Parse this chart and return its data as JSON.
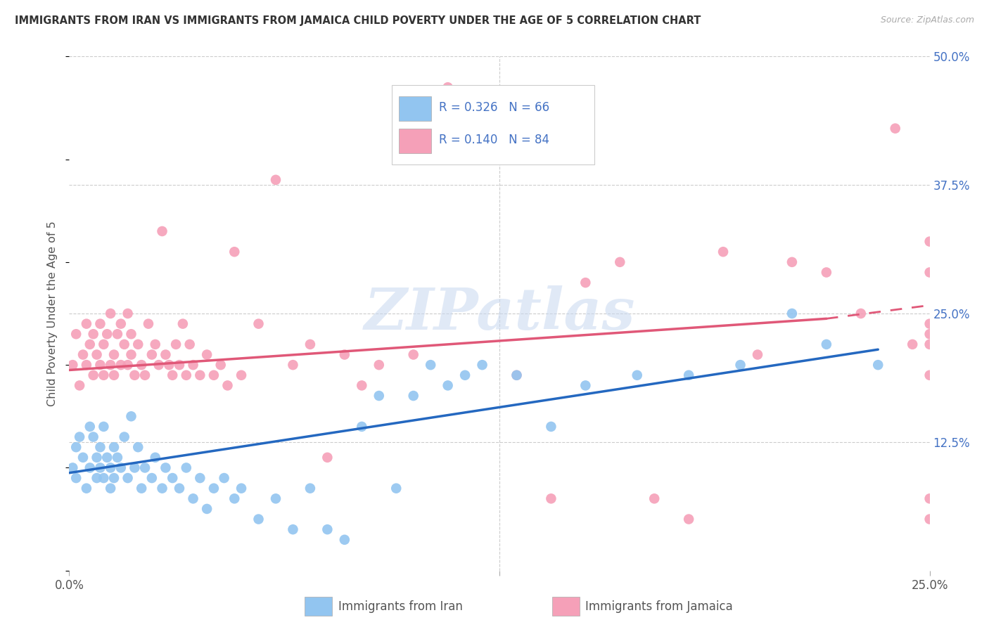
{
  "title": "IMMIGRANTS FROM IRAN VS IMMIGRANTS FROM JAMAICA CHILD POVERTY UNDER THE AGE OF 5 CORRELATION CHART",
  "source": "Source: ZipAtlas.com",
  "ylabel": "Child Poverty Under the Age of 5",
  "xlim": [
    0.0,
    0.25
  ],
  "ylim": [
    0.0,
    0.5
  ],
  "ytick_labels_right": [
    "50.0%",
    "37.5%",
    "25.0%",
    "12.5%"
  ],
  "ytick_vals_right": [
    0.5,
    0.375,
    0.25,
    0.125
  ],
  "legend_iran_label": "Immigrants from Iran",
  "legend_jamaica_label": "Immigrants from Jamaica",
  "iran_R": "0.326",
  "iran_N": "66",
  "jamaica_R": "0.140",
  "jamaica_N": "84",
  "iran_color": "#92C5F0",
  "jamaica_color": "#F5A0B8",
  "iran_line_color": "#2468C0",
  "jamaica_line_color": "#E05878",
  "watermark": "ZIPatlas",
  "iran_line_x0": 0.0,
  "iran_line_y0": 0.095,
  "iran_line_x1": 0.235,
  "iran_line_y1": 0.215,
  "jam_line_x0": 0.0,
  "jam_line_y0": 0.195,
  "jam_line_x1": 0.22,
  "jam_line_y1": 0.245,
  "jam_line_ext_x1": 0.25,
  "jam_line_ext_y1": 0.258,
  "iran_scatter_x": [
    0.001,
    0.002,
    0.002,
    0.003,
    0.004,
    0.005,
    0.006,
    0.006,
    0.007,
    0.008,
    0.008,
    0.009,
    0.009,
    0.01,
    0.01,
    0.011,
    0.012,
    0.012,
    0.013,
    0.013,
    0.014,
    0.015,
    0.016,
    0.017,
    0.018,
    0.019,
    0.02,
    0.021,
    0.022,
    0.024,
    0.025,
    0.027,
    0.028,
    0.03,
    0.032,
    0.034,
    0.036,
    0.038,
    0.04,
    0.042,
    0.045,
    0.048,
    0.05,
    0.055,
    0.06,
    0.065,
    0.07,
    0.075,
    0.08,
    0.085,
    0.09,
    0.095,
    0.1,
    0.105,
    0.11,
    0.115,
    0.12,
    0.13,
    0.14,
    0.15,
    0.165,
    0.18,
    0.195,
    0.21,
    0.22,
    0.235
  ],
  "iran_scatter_y": [
    0.1,
    0.12,
    0.09,
    0.13,
    0.11,
    0.08,
    0.14,
    0.1,
    0.13,
    0.11,
    0.09,
    0.1,
    0.12,
    0.09,
    0.14,
    0.11,
    0.1,
    0.08,
    0.12,
    0.09,
    0.11,
    0.1,
    0.13,
    0.09,
    0.15,
    0.1,
    0.12,
    0.08,
    0.1,
    0.09,
    0.11,
    0.08,
    0.1,
    0.09,
    0.08,
    0.1,
    0.07,
    0.09,
    0.06,
    0.08,
    0.09,
    0.07,
    0.08,
    0.05,
    0.07,
    0.04,
    0.08,
    0.04,
    0.03,
    0.14,
    0.17,
    0.08,
    0.17,
    0.2,
    0.18,
    0.19,
    0.2,
    0.19,
    0.14,
    0.18,
    0.19,
    0.19,
    0.2,
    0.25,
    0.22,
    0.2
  ],
  "jamaica_scatter_x": [
    0.001,
    0.002,
    0.003,
    0.004,
    0.005,
    0.005,
    0.006,
    0.007,
    0.007,
    0.008,
    0.009,
    0.009,
    0.01,
    0.01,
    0.011,
    0.012,
    0.012,
    0.013,
    0.013,
    0.014,
    0.015,
    0.015,
    0.016,
    0.017,
    0.017,
    0.018,
    0.018,
    0.019,
    0.02,
    0.021,
    0.022,
    0.023,
    0.024,
    0.025,
    0.026,
    0.027,
    0.028,
    0.029,
    0.03,
    0.031,
    0.032,
    0.033,
    0.034,
    0.035,
    0.036,
    0.038,
    0.04,
    0.042,
    0.044,
    0.046,
    0.048,
    0.05,
    0.055,
    0.06,
    0.065,
    0.07,
    0.075,
    0.08,
    0.085,
    0.09,
    0.1,
    0.11,
    0.12,
    0.13,
    0.14,
    0.15,
    0.16,
    0.17,
    0.18,
    0.19,
    0.2,
    0.21,
    0.22,
    0.23,
    0.24,
    0.245,
    0.25,
    0.25,
    0.25,
    0.25,
    0.25,
    0.25,
    0.25,
    0.25
  ],
  "jamaica_scatter_y": [
    0.2,
    0.23,
    0.18,
    0.21,
    0.2,
    0.24,
    0.22,
    0.19,
    0.23,
    0.21,
    0.2,
    0.24,
    0.22,
    0.19,
    0.23,
    0.2,
    0.25,
    0.21,
    0.19,
    0.23,
    0.2,
    0.24,
    0.22,
    0.2,
    0.25,
    0.21,
    0.23,
    0.19,
    0.22,
    0.2,
    0.19,
    0.24,
    0.21,
    0.22,
    0.2,
    0.33,
    0.21,
    0.2,
    0.19,
    0.22,
    0.2,
    0.24,
    0.19,
    0.22,
    0.2,
    0.19,
    0.21,
    0.19,
    0.2,
    0.18,
    0.31,
    0.19,
    0.24,
    0.38,
    0.2,
    0.22,
    0.11,
    0.21,
    0.18,
    0.2,
    0.21,
    0.47,
    0.44,
    0.19,
    0.07,
    0.28,
    0.3,
    0.07,
    0.05,
    0.31,
    0.21,
    0.3,
    0.29,
    0.25,
    0.43,
    0.22,
    0.32,
    0.29,
    0.23,
    0.24,
    0.22,
    0.19,
    0.07,
    0.05
  ]
}
